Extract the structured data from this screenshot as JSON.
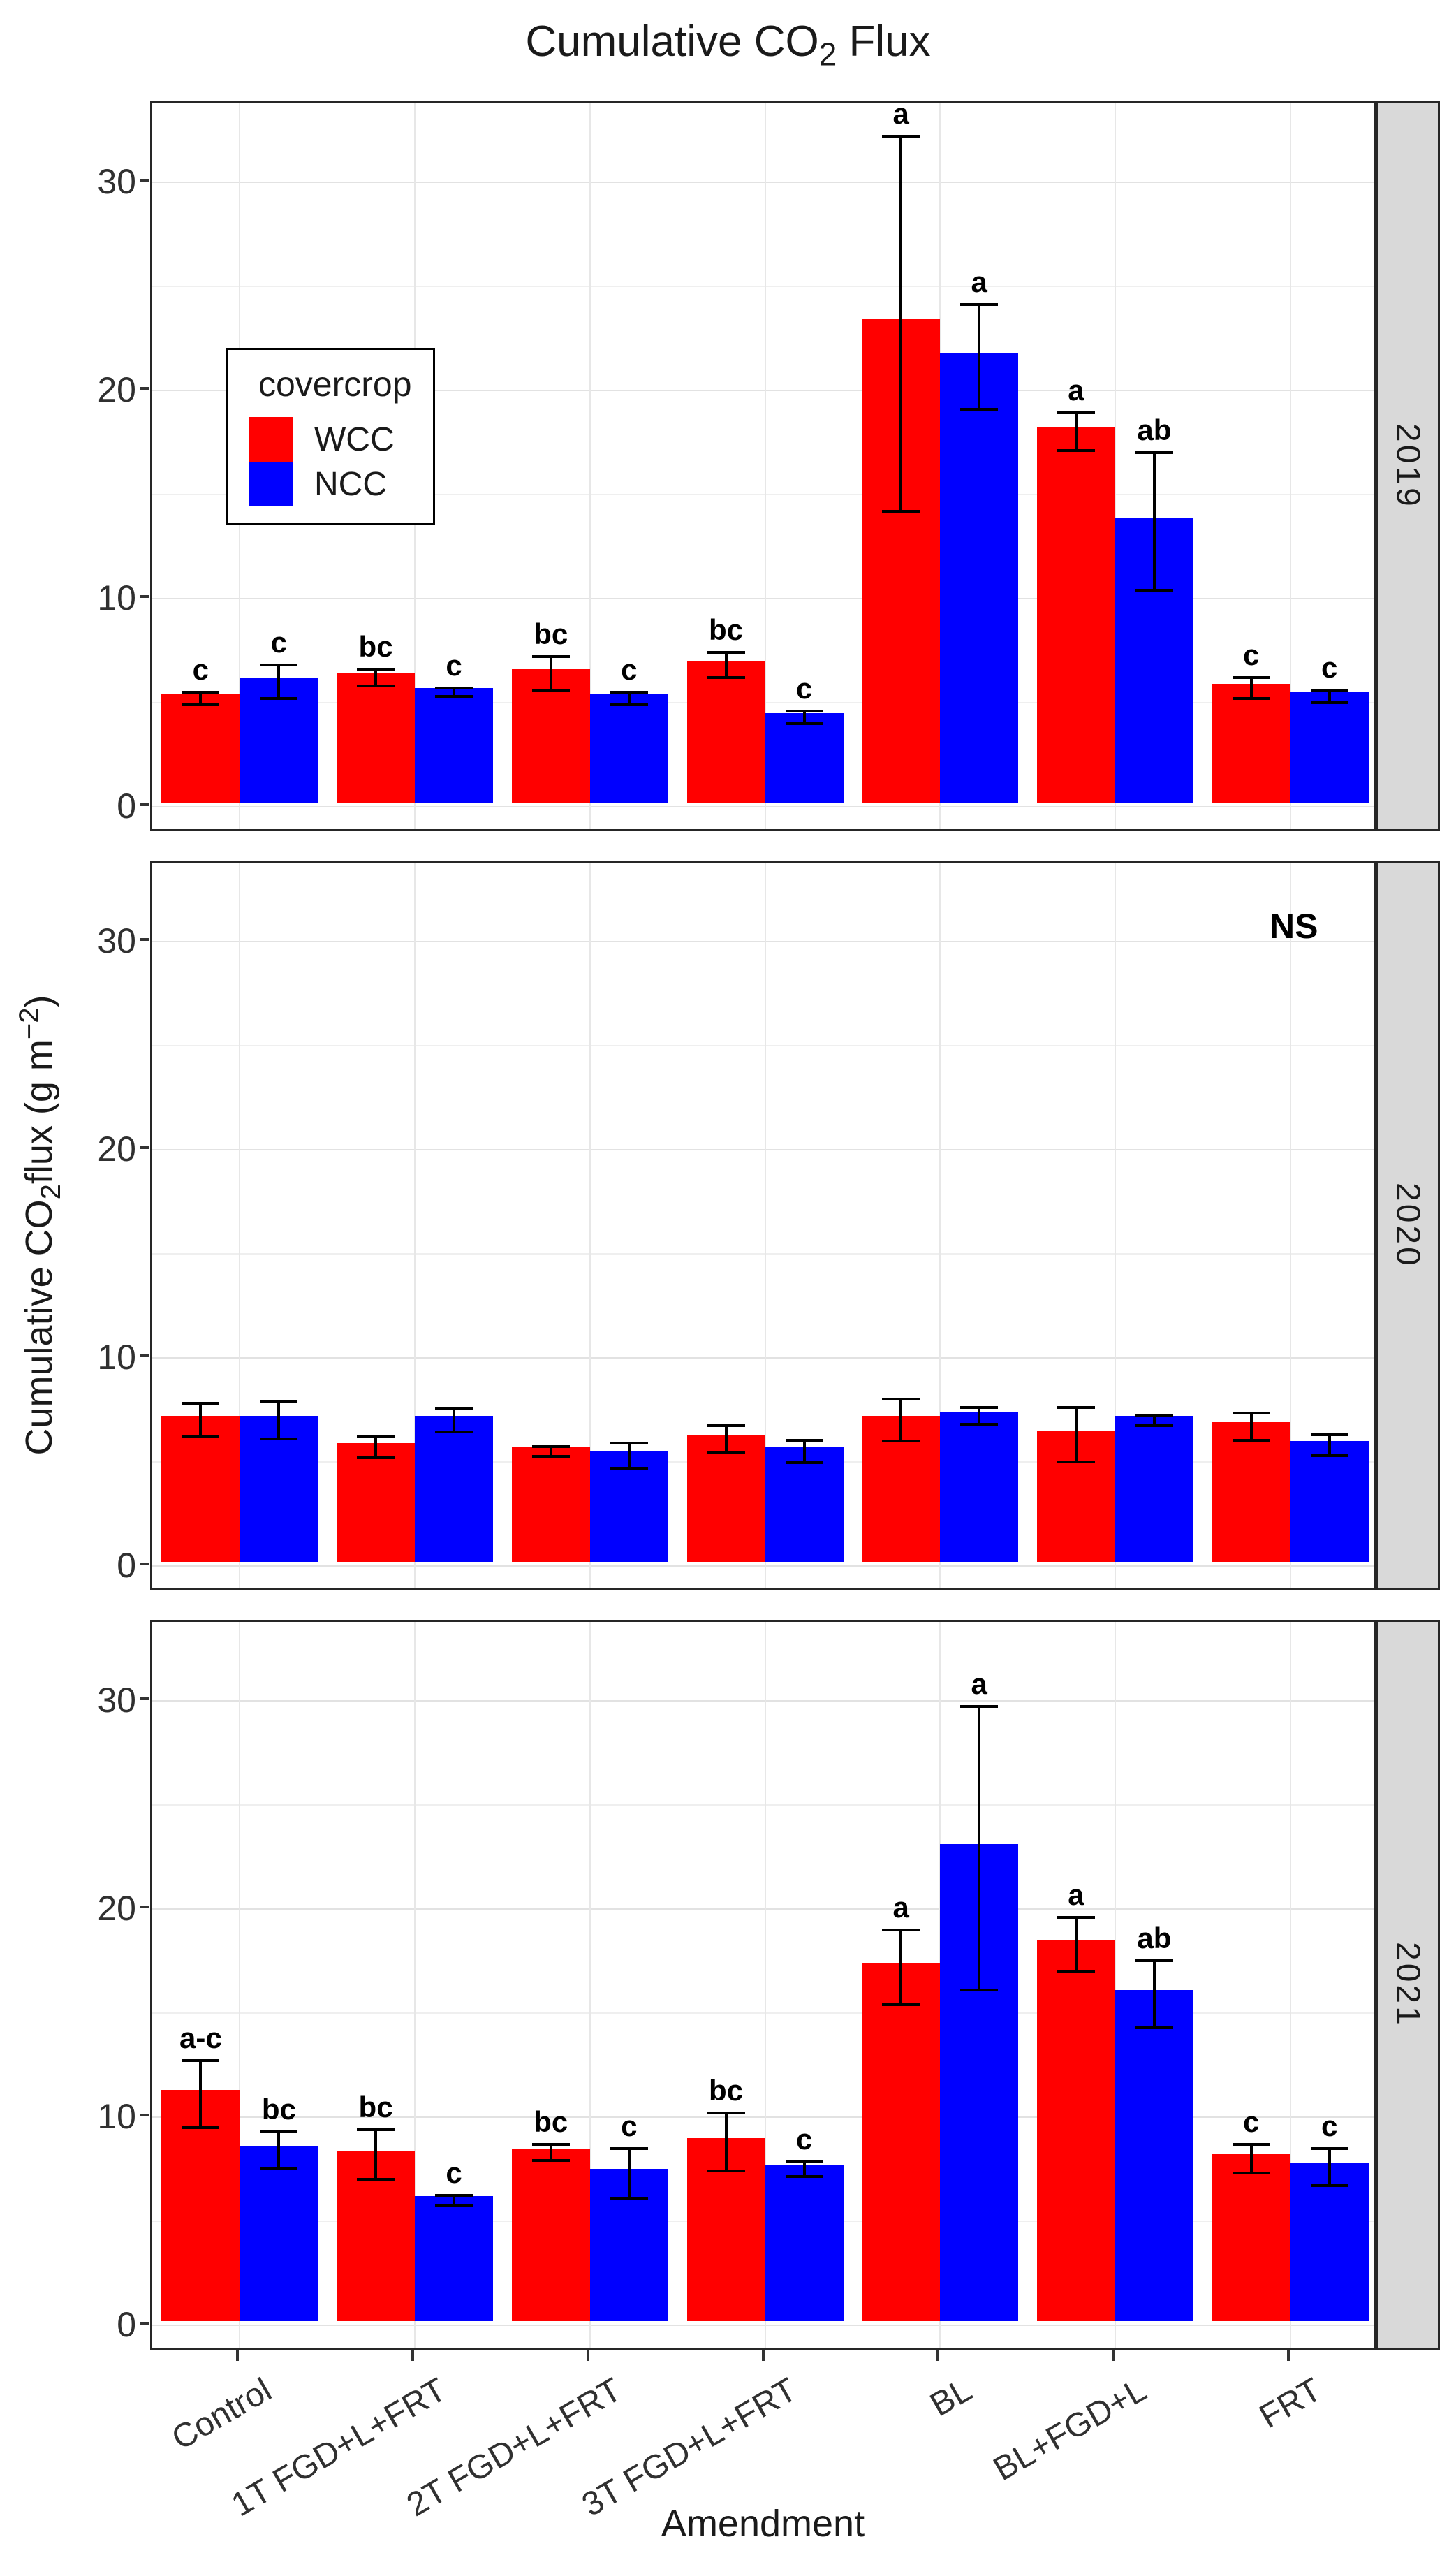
{
  "title": {
    "part1": "Cumulative CO",
    "sub": "2",
    "part2": " Flux"
  },
  "y_axis": {
    "title_part1": "Cumulative CO",
    "title_sub": "2",
    "title_part2": "flux (g m",
    "title_sup": "−2",
    "title_part3": ")",
    "tick_labels": [
      "0",
      "10",
      "20",
      "30"
    ]
  },
  "x_axis": {
    "title": "Amendment"
  },
  "legend": {
    "title": "covercrop",
    "items": [
      {
        "label": "WCC",
        "color": "#ff0000"
      },
      {
        "label": "NCC",
        "color": "#0000ff"
      }
    ]
  },
  "annotations": {
    "not_significant": "NS"
  },
  "colors": {
    "wcc": "#ff0000",
    "ncc": "#0000ff",
    "strip_background": "#d9d9d9",
    "panel_border": "#262626",
    "grid_major": "#e2e2e2",
    "grid_minor": "#efefef",
    "error_bar": "#000000"
  },
  "chart_data": {
    "type": "bar",
    "grouped": true,
    "grid": "major+minor",
    "legend_position": "inside top-left of first facet",
    "title": "Cumulative CO2 Flux",
    "xlabel": "Amendment",
    "ylabel": "Cumulative CO2 flux (g m-2)",
    "ylim": [
      0,
      33.8
    ],
    "yticks": [
      0,
      10,
      20,
      30
    ],
    "yticks_minor": [
      5,
      15,
      25
    ],
    "categories": [
      "Control",
      "1T FGD+L+FRT",
      "2T FGD+L+FRT",
      "3T FGD+L+FRT",
      "BL",
      "BL+FGD+L",
      "FRT"
    ],
    "facets": [
      {
        "year": "2019",
        "note": "",
        "series": [
          {
            "name": "WCC",
            "color": "#ff0000",
            "values": [
              5.2,
              6.2,
              6.4,
              6.8,
              23.2,
              18.0,
              5.7
            ],
            "errors": [
              0.3,
              0.4,
              0.8,
              0.6,
              9.0,
              0.9,
              0.5
            ],
            "letters": [
              "c",
              "bc",
              "bc",
              "bc",
              "a",
              "a",
              "c"
            ]
          },
          {
            "name": "NCC",
            "color": "#0000ff",
            "values": [
              6.0,
              5.5,
              5.2,
              4.3,
              21.6,
              13.7,
              5.3
            ],
            "errors": [
              0.8,
              0.2,
              0.3,
              0.3,
              2.5,
              3.3,
              0.3
            ],
            "letters": [
              "c",
              "c",
              "c",
              "c",
              "a",
              "ab",
              "c"
            ]
          }
        ]
      },
      {
        "year": "2020",
        "note": "NS",
        "series": [
          {
            "name": "WCC",
            "color": "#ff0000",
            "values": [
              7.0,
              5.7,
              5.5,
              6.1,
              7.0,
              6.3,
              6.7
            ],
            "errors": [
              0.8,
              0.5,
              0.25,
              0.65,
              1.0,
              1.3,
              0.65
            ],
            "letters": [
              "",
              "",
              "",
              "",
              "",
              "",
              ""
            ]
          },
          {
            "name": "NCC",
            "color": "#0000ff",
            "values": [
              7.0,
              7.0,
              5.3,
              5.5,
              7.2,
              7.0,
              5.8
            ],
            "errors": [
              0.9,
              0.55,
              0.6,
              0.55,
              0.4,
              0.25,
              0.5
            ],
            "letters": [
              "",
              "",
              "",
              "",
              "",
              "",
              ""
            ]
          }
        ]
      },
      {
        "year": "2021",
        "note": "",
        "series": [
          {
            "name": "WCC",
            "color": "#ff0000",
            "values": [
              11.1,
              8.2,
              8.3,
              8.8,
              17.2,
              18.3,
              8.0
            ],
            "errors": [
              1.6,
              1.2,
              0.4,
              1.4,
              1.8,
              1.3,
              0.7
            ],
            "letters": [
              "a-c",
              "bc",
              "bc",
              "bc",
              "a",
              "a",
              "c"
            ]
          },
          {
            "name": "NCC",
            "color": "#0000ff",
            "values": [
              8.4,
              6.0,
              7.3,
              7.5,
              22.9,
              15.9,
              7.6
            ],
            "errors": [
              0.9,
              0.25,
              1.2,
              0.35,
              6.8,
              1.6,
              0.9
            ],
            "letters": [
              "bc",
              "c",
              "c",
              "c",
              "a",
              "ab",
              "c"
            ]
          }
        ]
      }
    ]
  }
}
